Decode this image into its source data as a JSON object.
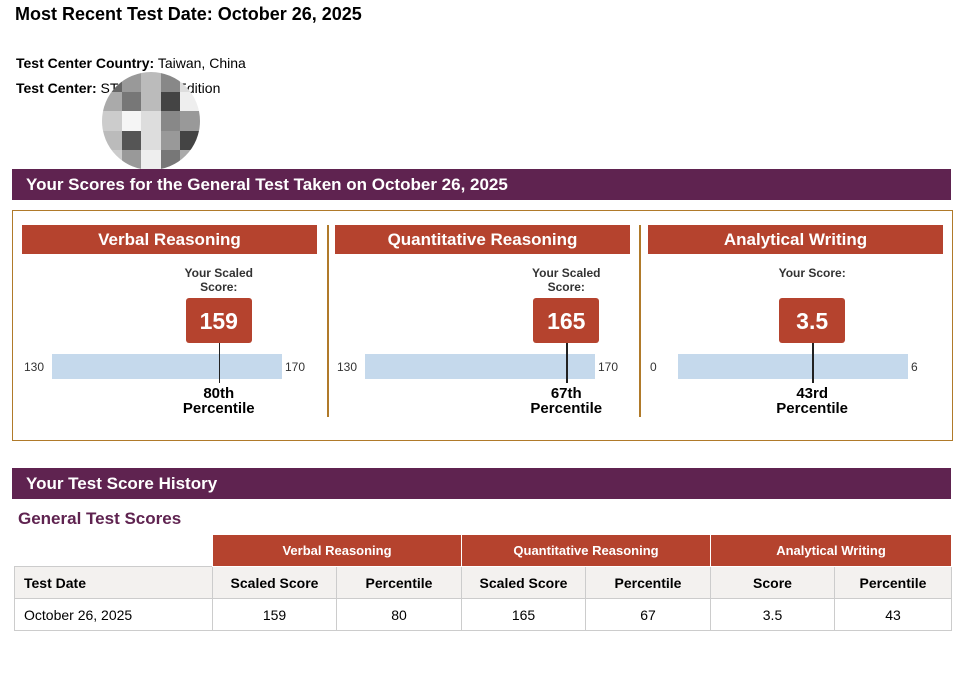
{
  "header": {
    "title": "Most Recent Test Date: October 26, 2025"
  },
  "info": {
    "country_label": "Test Center Country:",
    "country": "Taiwan, China",
    "center_label": "Test Center:",
    "center": "ST… Home Edition"
  },
  "scores_band": "Your Scores for the General Test Taken on October 26, 2025",
  "sections": [
    {
      "title": "Verbal Reasoning",
      "score_label": "Your Scaled Score:",
      "score": 159,
      "min": 130,
      "max": 170,
      "percentile_ord": "80th",
      "percentile_label": "Percentile"
    },
    {
      "title": "Quantitative Reasoning",
      "score_label": "Your Scaled Score:",
      "score": 165,
      "min": 130,
      "max": 170,
      "percentile_ord": "67th",
      "percentile_label": "Percentile"
    },
    {
      "title": "Analytical Writing",
      "score_label": "Your Score:",
      "score": 3.5,
      "min": 0,
      "max": 6,
      "percentile_ord": "43rd",
      "percentile_label": "Percentile"
    }
  ],
  "history_band": "Your Test Score History",
  "history": {
    "subtitle": "General Test Scores",
    "groups": [
      "Verbal Reasoning",
      "Quantitative Reasoning",
      "Analytical Writing"
    ],
    "columns": [
      "Test Date",
      "Scaled Score",
      "Percentile",
      "Scaled Score",
      "Percentile",
      "Score",
      "Percentile"
    ],
    "rows": [
      [
        "October 26, 2025",
        "159",
        "80",
        "165",
        "67",
        "3.5",
        "43"
      ]
    ]
  }
}
